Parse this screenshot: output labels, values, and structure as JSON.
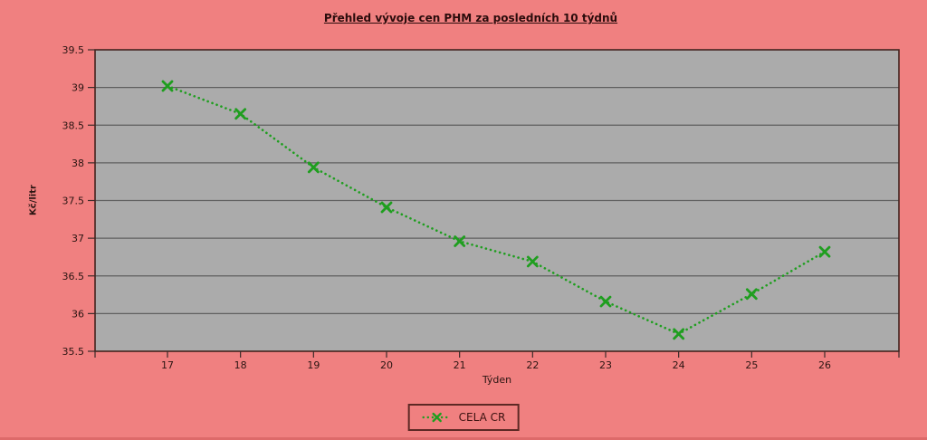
{
  "title": "Přehled vývoje cen PHM za posledních 10 týdnů",
  "colors": {
    "background": "#f08080",
    "plot_background": "#ababab",
    "plot_border": "#44241f",
    "gridline": "#5f5f5f",
    "tick": "#3a2a28",
    "text": "#2b1512",
    "series_green": "#1f9e1f",
    "legend_border": "#5d2824"
  },
  "chart_data": {
    "type": "line",
    "title": "Přehled vývoje cen PHM za posledních 10 týdnů",
    "xlabel": "Týden",
    "ylabel": "Kč/litr",
    "x": [
      17,
      18,
      19,
      20,
      21,
      22,
      23,
      24,
      25,
      26
    ],
    "series": [
      {
        "name": "CELA CR",
        "values": [
          39.02,
          38.65,
          37.94,
          37.41,
          36.96,
          36.69,
          36.16,
          35.73,
          36.26,
          36.82
        ]
      }
    ],
    "ylim": [
      35.5,
      39.5
    ],
    "yticks": [
      35.5,
      36,
      36.5,
      37,
      37.5,
      38,
      38.5,
      39,
      39.5
    ],
    "grid": true,
    "line_style": "dotted",
    "marker": "x",
    "legend_position": "bottom"
  }
}
